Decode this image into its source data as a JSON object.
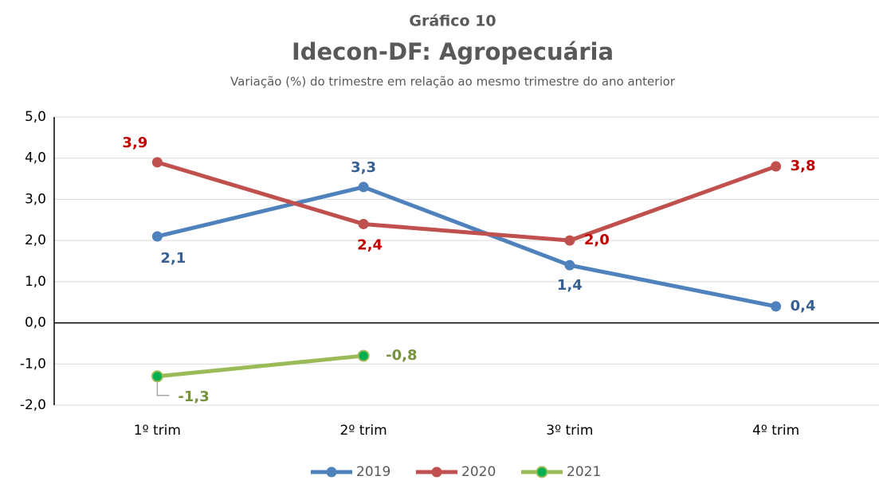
{
  "chart_data": {
    "type": "line",
    "supertitle": "Gráfico 10",
    "title": "Idecon-DF: Agropecuária",
    "subtitle": "Variação (%) do trimestre em relação ao mesmo trimestre do ano anterior",
    "categories": [
      "1º trim",
      "2º trim",
      "3º trim",
      "4º trim"
    ],
    "series": [
      {
        "name": "2019",
        "color": "#4f81bd",
        "label_color": "#376092",
        "values": [
          2.1,
          3.3,
          1.4,
          0.4
        ],
        "value_labels": [
          "2,1",
          "3,3",
          "1,4",
          "0,4"
        ]
      },
      {
        "name": "2020",
        "color": "#c0504d",
        "label_color": "#c00000",
        "values": [
          3.9,
          2.4,
          2.0,
          3.8
        ],
        "value_labels": [
          "3,9",
          "2,4",
          "2,0",
          "3,8"
        ]
      },
      {
        "name": "2021",
        "color": "#9bbb59",
        "marker_color": "#00b050",
        "label_color": "#77933c",
        "values": [
          -1.3,
          -0.8,
          null,
          null
        ],
        "value_labels": [
          "-1,3",
          "-0,8",
          null,
          null
        ]
      }
    ],
    "ylim": [
      -2,
      5
    ],
    "yticks": [
      {
        "value": -2,
        "label": "-2,0"
      },
      {
        "value": -1,
        "label": "-1,0"
      },
      {
        "value": 0,
        "label": "0,0"
      },
      {
        "value": 1,
        "label": "1,0"
      },
      {
        "value": 2,
        "label": "2,0"
      },
      {
        "value": 3,
        "label": "3,0"
      },
      {
        "value": 4,
        "label": "4,0"
      },
      {
        "value": 5,
        "label": "5,0"
      }
    ],
    "grid": true,
    "legend": "bottom"
  }
}
